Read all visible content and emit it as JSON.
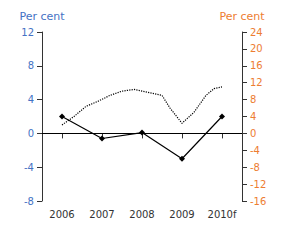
{
  "chart_data": {
    "type": "line",
    "xlim": [
      2005.5,
      2010.5
    ],
    "xticks": [
      2006,
      2007,
      2008,
      2009,
      {
        "value": 2010,
        "label": "2010f"
      }
    ],
    "ylim": [
      -8,
      12
    ],
    "yticks": [
      -8,
      -4,
      0,
      4,
      8,
      12
    ],
    "y2lim": [
      -16,
      24
    ],
    "y2ticks": [
      -16,
      -12,
      -8,
      -4,
      0,
      4,
      8,
      12,
      16,
      20,
      24
    ],
    "grid": false,
    "series": [
      {
        "x": [
          2006,
          2007,
          2008,
          2009,
          2010
        ],
        "values": [
          2.0,
          -0.6,
          0.1,
          -3.0,
          2.0
        ],
        "color": "black",
        "marker": "diamond",
        "line_style": "solid"
      },
      {
        "x": [
          2006,
          2006.3,
          2006.6,
          2006.9,
          2007.2,
          2007.5,
          2007.8,
          2008.0,
          2008.2,
          2008.5,
          2008.7,
          2009.0,
          2009.3,
          2009.6,
          2009.8,
          2010.0
        ],
        "values": [
          1.0,
          2.0,
          3.2,
          3.8,
          4.5,
          5.0,
          5.2,
          5.0,
          4.8,
          4.5,
          3.0,
          1.2,
          2.5,
          4.5,
          5.3,
          5.5
        ],
        "color": "black",
        "line_style": "dotted"
      }
    ],
    "reference_lines": [
      {
        "value": 0,
        "color": "black"
      }
    ],
    "annotations": [
      {
        "text": "Per cent",
        "color": "#4472C4",
        "axis": "y"
      },
      {
        "text": "Per cent",
        "color": "#ED7D31",
        "axis": "y2"
      }
    ]
  }
}
